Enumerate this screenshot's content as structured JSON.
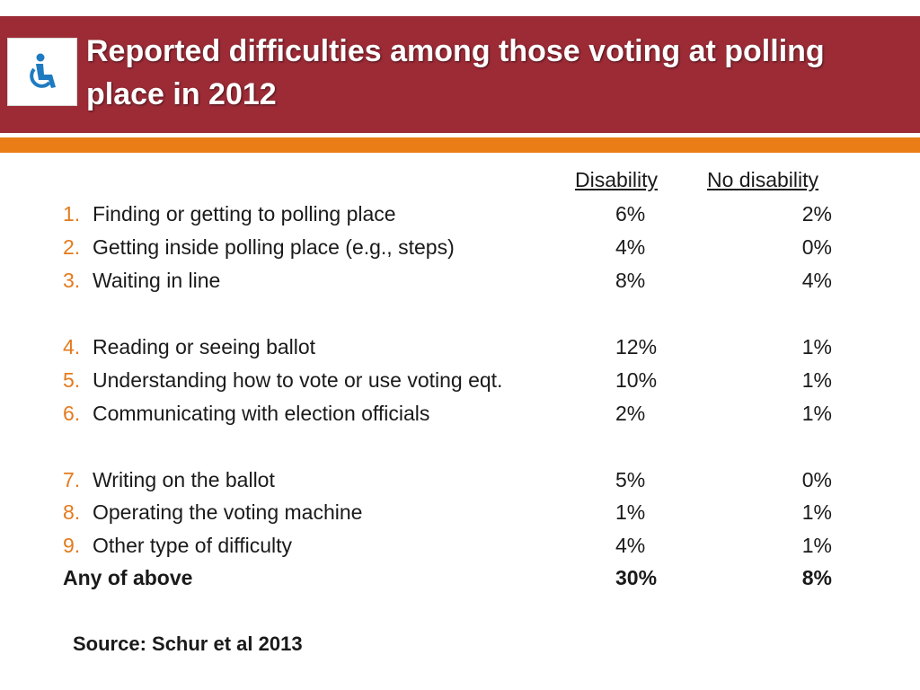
{
  "slide": {
    "title": "Reported difficulties among those voting at polling place in 2012",
    "colors": {
      "header_bg": "#9c2b36",
      "accent_bar": "#ea7d16",
      "number_color": "#e47a1c",
      "icon_color": "#1f7bc1"
    },
    "icon": "wheelchair-accessibility-icon"
  },
  "table": {
    "headers": {
      "disability": "Disability",
      "no_disability": "No disability"
    },
    "rows": [
      {
        "num": "1.",
        "label": "Finding or getting to polling place",
        "disability": "6%",
        "no_disability": "2%"
      },
      {
        "num": "2.",
        "label": "Getting inside polling place (e.g., steps)",
        "disability": "4%",
        "no_disability": "0%"
      },
      {
        "num": "3.",
        "label": "Waiting in line",
        "disability": "8%",
        "no_disability": "4%"
      },
      {
        "num": "4.",
        "label": "Reading or seeing ballot",
        "disability": "12%",
        "no_disability": "1%"
      },
      {
        "num": "5.",
        "label": "Understanding how to vote or use voting eqt.",
        "disability": "10%",
        "no_disability": "1%"
      },
      {
        "num": "6.",
        "label": "Communicating with election officials",
        "disability": "2%",
        "no_disability": "1%"
      },
      {
        "num": "7.",
        "label": "Writing on the ballot",
        "disability": "5%",
        "no_disability": "0%"
      },
      {
        "num": "8.",
        "label": "Operating the voting machine",
        "disability": "1%",
        "no_disability": "1%"
      },
      {
        "num": "9.",
        "label": "Other type of difficulty",
        "disability": "4%",
        "no_disability": "1%"
      }
    ],
    "total": {
      "label": "Any of above",
      "disability": "30%",
      "no_disability": "8%"
    }
  },
  "source": "Source: Schur et al 2013"
}
